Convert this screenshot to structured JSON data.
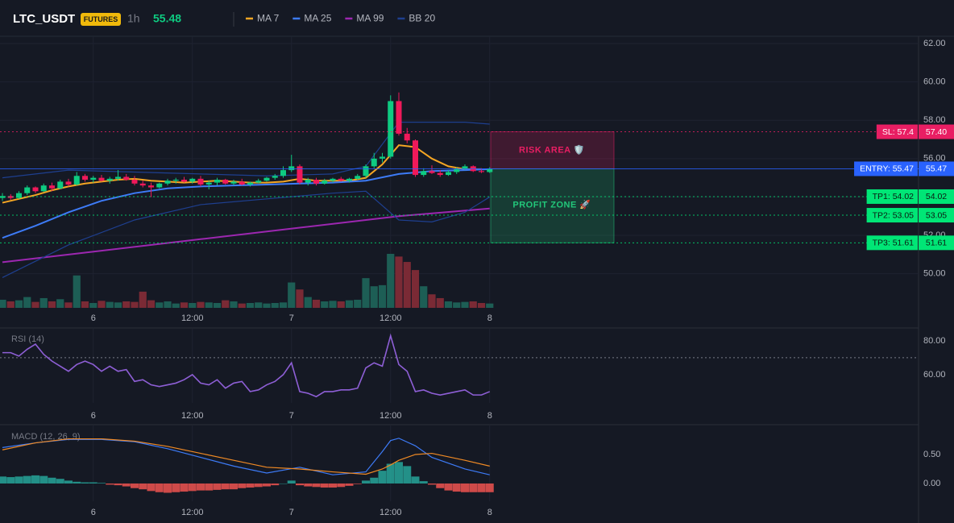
{
  "header": {
    "symbol": "LTC_USDT",
    "badge": "FUTURES",
    "interval": "1h",
    "price": 55.48
  },
  "chart_data": [
    {
      "type": "candlestick",
      "categories": [
        null,
        null,
        null,
        null,
        null,
        null,
        null,
        null,
        null,
        null,
        null,
        "6",
        null,
        null,
        null,
        null,
        null,
        null,
        null,
        null,
        null,
        null,
        null,
        "12:00",
        null,
        null,
        null,
        null,
        null,
        null,
        null,
        null,
        null,
        null,
        null,
        "7",
        null,
        null,
        null,
        null,
        null,
        null,
        null,
        null,
        null,
        null,
        null,
        "12:00",
        null,
        null,
        null,
        null,
        null,
        null,
        null,
        null,
        null,
        null,
        null,
        "8"
      ],
      "open": [
        53.95,
        54.05,
        53.95,
        54.2,
        54.5,
        54.3,
        54.6,
        54.45,
        54.8,
        54.65,
        55.1,
        54.9,
        55.0,
        54.85,
        54.95,
        55.05,
        54.9,
        54.7,
        54.6,
        54.5,
        54.7,
        54.85,
        54.9,
        54.8,
        54.95,
        54.65,
        54.75,
        54.9,
        54.7,
        54.8,
        54.65,
        54.75,
        54.85,
        55.0,
        55.1,
        55.4,
        55.6,
        54.75,
        54.9,
        54.7,
        54.85,
        54.95,
        54.85,
        54.95,
        55.1,
        55.6,
        56.0,
        56.1,
        59.0,
        57.3,
        56.95,
        55.15,
        55.35,
        55.25,
        55.15,
        55.3,
        55.45,
        55.6,
        55.35,
        55.3
      ],
      "high": [
        54.2,
        54.15,
        54.3,
        54.6,
        54.55,
        54.7,
        54.75,
        54.9,
        54.95,
        55.3,
        55.2,
        55.1,
        55.15,
        55.05,
        55.4,
        55.2,
        55.1,
        54.85,
        54.75,
        54.75,
        54.95,
        55.0,
        55.05,
        55.0,
        55.1,
        54.85,
        55.0,
        54.95,
        54.9,
        54.95,
        54.8,
        54.95,
        55.05,
        55.2,
        55.6,
        56.2,
        55.7,
        55.0,
        55.0,
        54.95,
        55.0,
        55.05,
        55.0,
        55.2,
        55.7,
        56.3,
        56.3,
        59.3,
        59.45,
        57.6,
        57.0,
        55.5,
        55.65,
        55.4,
        55.4,
        55.55,
        55.7,
        55.65,
        55.5,
        55.55
      ],
      "low": [
        53.8,
        53.85,
        53.9,
        54.1,
        54.2,
        54.25,
        54.3,
        54.4,
        54.55,
        54.6,
        54.8,
        54.75,
        54.8,
        54.7,
        54.85,
        54.85,
        54.6,
        54.5,
        54.0,
        54.45,
        54.6,
        54.7,
        54.75,
        54.7,
        54.55,
        54.4,
        54.6,
        54.65,
        54.6,
        54.6,
        54.55,
        54.7,
        54.8,
        54.9,
        55.0,
        55.3,
        54.65,
        54.6,
        54.6,
        54.65,
        54.75,
        54.8,
        54.75,
        54.9,
        55.0,
        55.5,
        55.8,
        56.0,
        57.2,
        56.8,
        55.05,
        55.05,
        55.2,
        55.05,
        55.1,
        55.2,
        55.4,
        55.3,
        55.25,
        55.25
      ],
      "close": [
        54.05,
        53.95,
        54.2,
        54.5,
        54.3,
        54.6,
        54.45,
        54.8,
        54.65,
        55.1,
        54.9,
        55.0,
        54.85,
        54.95,
        55.05,
        54.9,
        54.7,
        54.6,
        54.5,
        54.7,
        54.85,
        54.9,
        54.8,
        54.95,
        54.65,
        54.75,
        54.9,
        54.7,
        54.8,
        54.65,
        54.75,
        54.85,
        55.0,
        55.1,
        55.4,
        55.6,
        54.75,
        54.9,
        54.7,
        54.85,
        54.95,
        54.85,
        54.95,
        55.1,
        55.6,
        56.0,
        56.1,
        59.0,
        57.3,
        56.95,
        55.15,
        55.35,
        55.25,
        55.15,
        55.3,
        55.45,
        55.6,
        55.35,
        55.3,
        55.48
      ],
      "up_color": "#0ecb81",
      "down_color": "#f0195a",
      "volume": [
        15,
        12,
        14,
        20,
        11,
        18,
        12,
        16,
        10,
        60,
        12,
        9,
        13,
        11,
        10,
        12,
        11,
        30,
        14,
        10,
        12,
        8,
        10,
        9,
        11,
        10,
        9,
        14,
        12,
        8,
        9,
        10,
        8,
        9,
        10,
        47,
        34,
        20,
        15,
        12,
        13,
        12,
        14,
        15,
        55,
        40,
        42,
        100,
        95,
        85,
        70,
        40,
        25,
        18,
        12,
        10,
        11,
        12,
        9,
        8
      ],
      "volume_lim": [
        0,
        100
      ],
      "volume_up_color": "#1d5e55",
      "volume_down_color": "#7a2a35",
      "lines": [
        {
          "name": "MA 7",
          "color": "#f5a623",
          "x": [
            0,
            2,
            4,
            6,
            8,
            10,
            12,
            14,
            16,
            18,
            20,
            22,
            24,
            26,
            28,
            30,
            32,
            34,
            36,
            38,
            40,
            42,
            44,
            46,
            48,
            50,
            52,
            54,
            56,
            58
          ],
          "values": [
            53.7,
            53.9,
            54.1,
            54.35,
            54.55,
            54.7,
            54.8,
            54.9,
            54.95,
            54.85,
            54.8,
            54.75,
            54.8,
            54.85,
            54.8,
            54.75,
            54.75,
            54.8,
            54.95,
            54.85,
            54.85,
            54.85,
            55.0,
            55.7,
            56.7,
            56.6,
            56.0,
            55.6,
            55.45,
            55.45
          ]
        },
        {
          "name": "MA 25",
          "color": "#3d7bf7",
          "x": [
            0,
            4,
            8,
            12,
            16,
            20,
            24,
            28,
            32,
            36,
            40,
            44,
            48,
            52,
            56,
            59
          ],
          "values": [
            51.87,
            52.5,
            53.2,
            53.8,
            54.2,
            54.45,
            54.55,
            54.6,
            54.65,
            54.7,
            54.75,
            54.85,
            55.2,
            55.35,
            55.4,
            55.45
          ]
        },
        {
          "name": "MA 99",
          "color": "#9c27b0",
          "x": [
            0,
            12,
            24,
            36,
            48,
            59
          ],
          "values": [
            50.6,
            51.2,
            51.8,
            52.4,
            53.0,
            53.4
          ]
        },
        {
          "name": "BB 20",
          "color": "#1e3f8f",
          "x": [
            0,
            8,
            16,
            24,
            32,
            40,
            44,
            48,
            52,
            56,
            59
          ],
          "upper": [
            55.0,
            55.4,
            55.3,
            55.2,
            55.1,
            55.2,
            55.6,
            57.9,
            57.9,
            57.9,
            57.8
          ],
          "lower": [
            49.8,
            51.5,
            52.8,
            53.6,
            53.9,
            54.2,
            54.3,
            52.8,
            52.7,
            53.2,
            54.0
          ]
        }
      ],
      "ylim": [
        48.22,
        62.38
      ],
      "yticks": [
        {
          "value": 50,
          "label": "50.00"
        },
        {
          "value": 52,
          "label": "52.00"
        },
        {
          "value": 54,
          "label": "54.00"
        },
        {
          "value": 56,
          "label": "56.00"
        },
        {
          "value": 58,
          "label": "58.00"
        },
        {
          "value": 60,
          "label": "60.00"
        },
        {
          "value": 62,
          "label": "62.00"
        }
      ],
      "grid": true,
      "levels": [
        {
          "label": "SL: 57.4",
          "value": 57.4,
          "value_label": "57.40",
          "color": "#e91e63",
          "text_color": "#ffffff",
          "dash": true
        },
        {
          "label": "ENTRY: 55.47",
          "value": 55.47,
          "value_label": "55.47",
          "color": "#2962ff",
          "text_color": "#ffffff",
          "dash": false
        },
        {
          "label": "TP1: 54.02",
          "value": 54.02,
          "value_label": "54.02",
          "color": "#00e676",
          "text_color": "#0b1a12",
          "dash": true
        },
        {
          "label": "TP2: 53.05",
          "value": 53.05,
          "value_label": "53.05",
          "color": "#00e676",
          "text_color": "#0b1a12",
          "dash": true
        },
        {
          "label": "TP3: 51.61",
          "value": 51.61,
          "value_label": "51.61",
          "color": "#00e676",
          "text_color": "#0b1a12",
          "dash": true
        }
      ],
      "zones": [
        {
          "label": "RISK AREA 🛡️",
          "color": "#e91e63"
        },
        {
          "label": "PROFIT ZONE 🚀",
          "color": "#22c77a"
        }
      ]
    },
    {
      "type": "line",
      "title": "RSI (14)",
      "color": "#8e5fd6",
      "values": [
        73,
        73,
        71,
        75,
        78,
        72,
        68,
        65,
        62,
        66,
        68,
        66,
        62,
        65,
        62,
        63,
        56,
        57,
        54,
        53,
        54,
        55,
        57,
        60,
        55,
        54,
        57,
        52,
        55,
        56,
        50,
        51,
        54,
        56,
        60,
        67,
        50,
        49,
        47,
        50,
        50,
        51,
        51,
        52,
        64,
        67,
        65,
        83,
        66,
        62,
        50,
        51,
        49,
        48,
        49,
        50,
        51,
        48,
        48,
        50
      ],
      "ylim": [
        43.3,
        87.1
      ],
      "yticks": [
        {
          "value": 60,
          "label": "60.00"
        },
        {
          "value": 80,
          "label": "80.00"
        }
      ],
      "level": 70
    },
    {
      "type": "macd",
      "title": "MACD (12, 26, 9)",
      "x": [
        0,
        4,
        8,
        12,
        16,
        20,
        24,
        28,
        32,
        36,
        40,
        44,
        46,
        47,
        48,
        50,
        52,
        56,
        59
      ],
      "lines": [
        {
          "color": "#3d7bf7",
          "values": [
            0.62,
            0.7,
            0.76,
            0.76,
            0.72,
            0.6,
            0.45,
            0.3,
            0.18,
            0.28,
            0.15,
            0.2,
            0.55,
            0.74,
            0.78,
            0.65,
            0.45,
            0.25,
            0.15
          ]
        },
        {
          "color": "#f08a24",
          "values": [
            0.58,
            0.7,
            0.77,
            0.77,
            0.73,
            0.64,
            0.52,
            0.4,
            0.28,
            0.25,
            0.2,
            0.16,
            0.25,
            0.32,
            0.4,
            0.5,
            0.52,
            0.4,
            0.3
          ]
        }
      ],
      "histogram": [
        0.12,
        0.11,
        0.12,
        0.13,
        0.14,
        0.13,
        0.1,
        0.08,
        0.05,
        0.03,
        0.02,
        0.02,
        0.01,
        -0.02,
        -0.03,
        -0.05,
        -0.08,
        -0.1,
        -0.13,
        -0.15,
        -0.16,
        -0.15,
        -0.14,
        -0.13,
        -0.12,
        -0.12,
        -0.11,
        -0.1,
        -0.1,
        -0.08,
        -0.07,
        -0.06,
        -0.05,
        -0.03,
        0.0,
        0.05,
        -0.03,
        -0.05,
        -0.06,
        -0.07,
        -0.07,
        -0.06,
        -0.04,
        -0.01,
        0.05,
        0.1,
        0.22,
        0.34,
        0.37,
        0.3,
        0.12,
        0.04,
        -0.02,
        -0.08,
        -0.12,
        -0.14,
        -0.15,
        -0.15,
        -0.15,
        -0.15
      ],
      "up_color": "#26a69a",
      "down_color": "#ef5350",
      "ylim": [
        -0.306,
        1.0
      ],
      "yticks": [
        {
          "value": 0,
          "label": "0.00"
        },
        {
          "value": 0.5,
          "label": "0.50"
        }
      ]
    }
  ]
}
